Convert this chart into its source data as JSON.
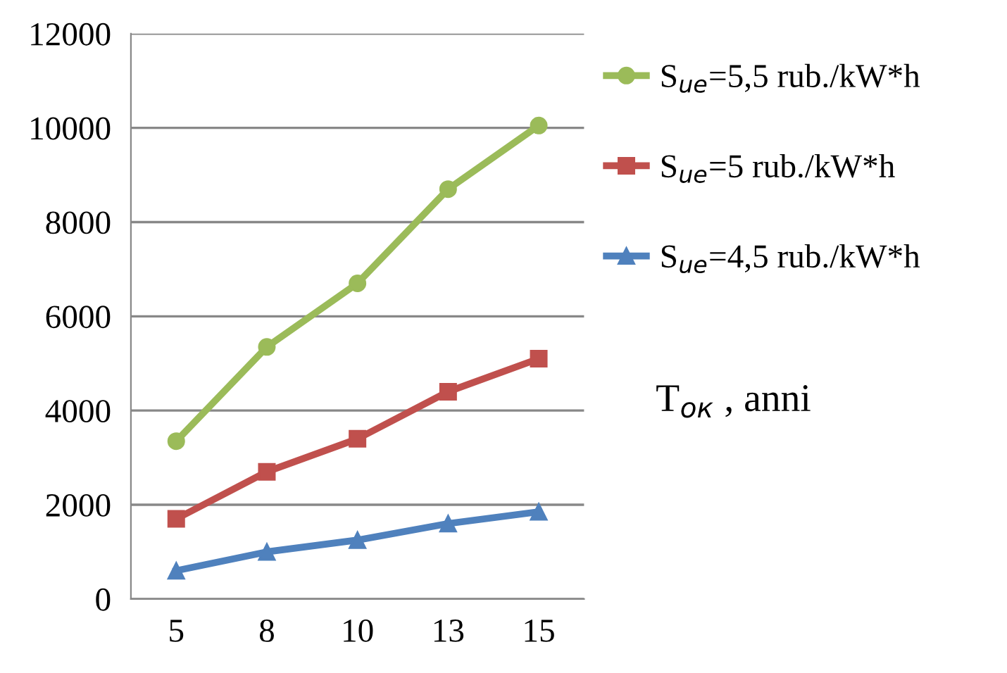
{
  "chart_data": {
    "type": "line",
    "categories": [
      "5",
      "8",
      "10",
      "13",
      "15"
    ],
    "series": [
      {
        "name": "S$_{ue}$=5,5 rub./kW*h",
        "color": "#9bbb59",
        "marker": "circle",
        "values": [
          3350,
          5350,
          6700,
          8700,
          10050
        ]
      },
      {
        "name": "S$_{ue}$=5 rub./kW*h",
        "color": "#c0504d",
        "marker": "square",
        "values": [
          1700,
          2700,
          3400,
          4400,
          5100
        ]
      },
      {
        "name": "S$_{ue}$=4,5 rub./kW*h",
        "color": "#4f81bd",
        "marker": "triangle",
        "values": [
          600,
          1000,
          1250,
          1600,
          1850
        ]
      }
    ],
    "xlabel": "T$_{ок}$ , anni",
    "ylim": [
      0,
      12000
    ],
    "yticks": [
      0,
      2000,
      4000,
      6000,
      8000,
      10000,
      12000
    ],
    "grid": "y",
    "legend": "right"
  }
}
